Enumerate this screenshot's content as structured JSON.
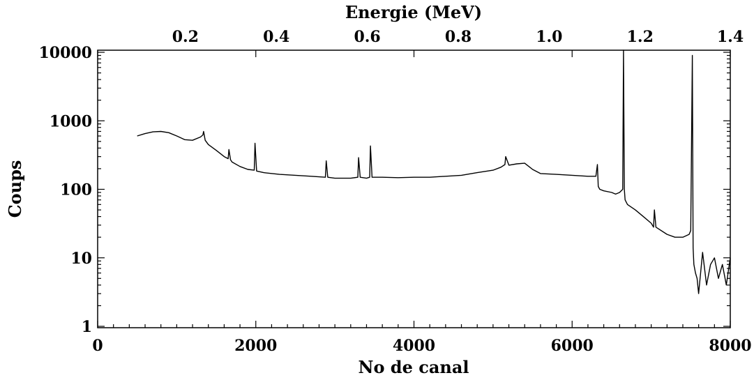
{
  "chart_data": {
    "type": "line",
    "title": "",
    "xlabel": "No de canal",
    "ylabel": "Coups",
    "x2label": "Energie (MeV)",
    "xlim": [
      0,
      8000
    ],
    "ylim": [
      1,
      12000
    ],
    "yscale": "log",
    "grid": false,
    "legend": "none",
    "x_ticks": [
      "0",
      "2000",
      "4000",
      "6000",
      "8000"
    ],
    "y_ticks": [
      "1",
      "10",
      "100",
      "1000",
      "10000"
    ],
    "x2_ticks": [
      "0.2",
      "0.4",
      "0.6",
      "0.8",
      "1.0",
      "1.2",
      "1.4"
    ],
    "x2_tick_channels": [
      1110,
      2260,
      3410,
      4560,
      5710,
      6860,
      8000
    ],
    "line_color": "#000000",
    "series": [
      {
        "x": [
          500,
          600,
          700,
          800,
          900,
          1000,
          1100,
          1200,
          1300,
          1330,
          1340,
          1360,
          1400,
          1500,
          1600,
          1650,
          1660,
          1680,
          1700,
          1800,
          1900,
          1980,
          1990,
          2010,
          2100,
          2300,
          2500,
          2700,
          2880,
          2890,
          2910,
          3000,
          3200,
          3290,
          3300,
          3320,
          3400,
          3440,
          3450,
          3470,
          3600,
          3800,
          4000,
          4200,
          4400,
          4600,
          4800,
          5000,
          5100,
          5150,
          5160,
          5200,
          5300,
          5400,
          5500,
          5600,
          5800,
          6000,
          6200,
          6300,
          6320,
          6330,
          6350,
          6400,
          6500,
          6550,
          6600,
          6640,
          6650,
          6660,
          6670,
          6700,
          6800,
          6900,
          7000,
          7030,
          7040,
          7060,
          7200,
          7300,
          7400,
          7480,
          7500,
          7520,
          7530,
          7540,
          7560,
          7580,
          7600,
          7650,
          7700,
          7750,
          7800,
          7850,
          7900,
          7950,
          8000
        ],
        "y": [
          600,
          650,
          690,
          700,
          670,
          600,
          530,
          520,
          580,
          620,
          700,
          520,
          450,
          370,
          300,
          280,
          380,
          270,
          250,
          215,
          195,
          190,
          470,
          185,
          175,
          165,
          160,
          155,
          150,
          260,
          150,
          145,
          145,
          150,
          290,
          150,
          145,
          150,
          430,
          150,
          150,
          148,
          150,
          150,
          155,
          160,
          175,
          190,
          210,
          230,
          300,
          225,
          235,
          240,
          195,
          170,
          165,
          160,
          155,
          155,
          230,
          110,
          100,
          95,
          90,
          85,
          90,
          100,
          12000,
          100,
          70,
          60,
          50,
          40,
          32,
          28,
          50,
          28,
          22,
          20,
          20,
          22,
          25,
          9000,
          14,
          8,
          6,
          5,
          3,
          12,
          4,
          8,
          10,
          5,
          8,
          4,
          10
        ]
      }
    ]
  }
}
